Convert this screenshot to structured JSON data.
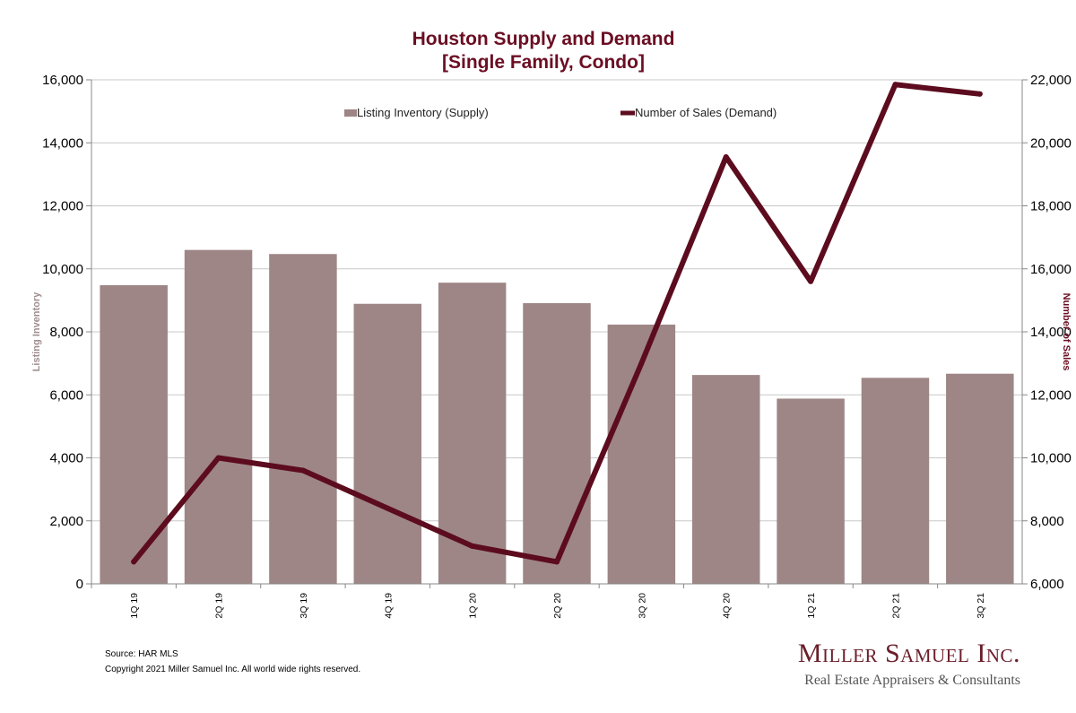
{
  "chart_data": {
    "type": "bar",
    "title": "Houston Supply and Demand",
    "subtitle": "[Single Family, Condo]",
    "categories": [
      "1Q 19",
      "2Q 19",
      "3Q 19",
      "4Q 19",
      "1Q 20",
      "2Q 20",
      "3Q 20",
      "4Q 20",
      "1Q 21",
      "2Q 21",
      "3Q 21"
    ],
    "series": [
      {
        "name": "Listing Inventory (Supply)",
        "type": "bar",
        "axis": "left",
        "color": "#9e8686",
        "values": [
          9480,
          10600,
          10470,
          8890,
          9560,
          8910,
          8230,
          6630,
          5880,
          6540,
          6670
        ]
      },
      {
        "name": "Number of Sales (Demand)",
        "type": "line",
        "axis": "right",
        "color": "#5c0c1e",
        "values": [
          6700,
          10000,
          9600,
          8400,
          7200,
          6700,
          13000,
          19550,
          15600,
          21850,
          21550
        ]
      }
    ],
    "ylabel": "Listing Inventory",
    "y2label": "Number of Sales",
    "ylim": [
      0,
      16000
    ],
    "y2lim": [
      6000,
      22000
    ],
    "yticks": [
      "0",
      "2,000",
      "4,000",
      "6,000",
      "8,000",
      "10,000",
      "12,000",
      "14,000",
      "16,000"
    ],
    "y2ticks": [
      "6,000",
      "8,000",
      "10,000",
      "12,000",
      "14,000",
      "16,000",
      "18,000",
      "20,000",
      "22,000"
    ],
    "grid": true,
    "legend": "top"
  },
  "footer": {
    "source": "Source: HAR MLS",
    "copyright": "Copyright 2021 Miller Samuel Inc.  All world wide rights reserved."
  },
  "logo": {
    "name": "Miller Samuel Inc.",
    "tagline": "Real Estate Appraisers & Consultants"
  }
}
